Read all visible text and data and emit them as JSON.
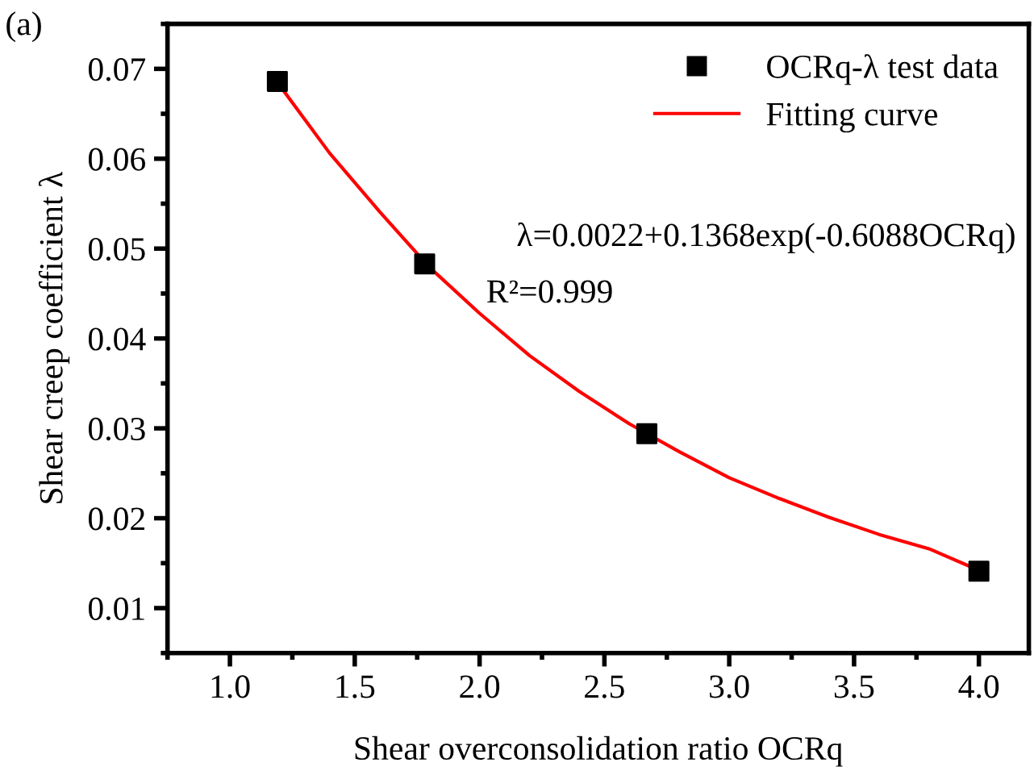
{
  "chart_data": {
    "type": "scatter",
    "xlabel": "Shear overconsolidation ratio OCRq",
    "ylabel": "Shear creep coefficient λ",
    "xlim": [
      0.75,
      4.2
    ],
    "xticks": [
      {
        "value": 1.0,
        "label": "1.0"
      },
      1.5,
      {
        "value": 2.0,
        "label": "2.0"
      },
      2.5,
      {
        "value": 3.0,
        "label": "3.0"
      },
      3.5,
      {
        "value": 4.0,
        "label": "4.0"
      }
    ],
    "ylim": [
      0.005,
      0.075
    ],
    "yticks": [
      0.01,
      0.02,
      0.03,
      0.04,
      0.05,
      0.06,
      0.07
    ],
    "legend": "top right",
    "grid": false,
    "series": [
      {
        "name": "OCRq-λ test data",
        "marker": "square",
        "color": "#000000",
        "x": [
          1.19,
          1.78,
          2.67,
          4.0
        ],
        "values": [
          0.0686,
          0.0483,
          0.0294,
          0.0141
        ]
      },
      {
        "name": "Fitting curve",
        "type": "line",
        "line_style": "solid",
        "color": "#ff0000",
        "x": [
          1.19,
          1.4,
          1.6,
          1.8,
          2.0,
          2.2,
          2.4,
          2.6,
          2.8,
          3.0,
          3.2,
          3.4,
          3.6,
          3.8,
          4.0
        ],
        "values": [
          0.0685,
          0.0606,
          0.0541,
          0.0479,
          0.0428,
          0.0381,
          0.0341,
          0.0305,
          0.0274,
          0.0245,
          0.0222,
          0.0201,
          0.0182,
          0.0166,
          0.0142
        ]
      }
    ],
    "annotations": [
      "(a)",
      "λ=0.0022+0.1368exp(-0.6088OCRq)",
      "R²=0.999"
    ]
  }
}
